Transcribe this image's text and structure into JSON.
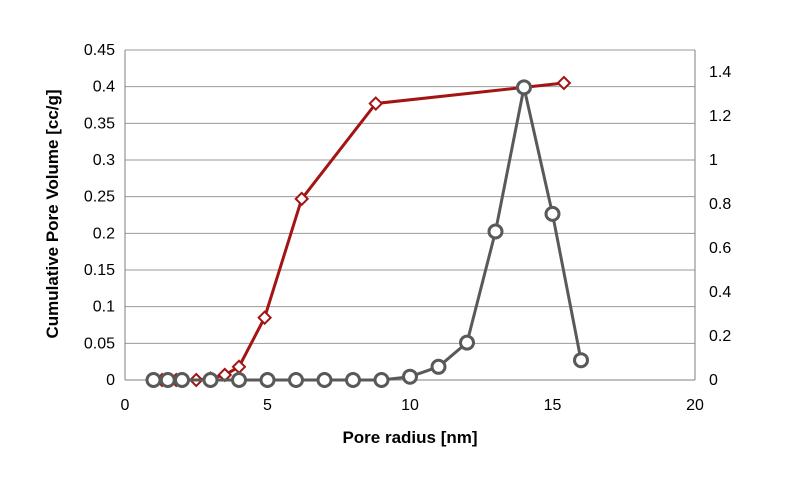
{
  "chart_data": {
    "type": "line",
    "xlabel": "Pore radius [nm]",
    "ylabel": "Cumulative Pore Volume [cc/g]",
    "y2label": "",
    "xlim": [
      0,
      20
    ],
    "ylim": [
      0,
      0.45
    ],
    "y2lim": [
      0,
      1.5
    ],
    "x_ticks": [
      "0",
      "5",
      "10",
      "15",
      "20"
    ],
    "y_ticks": [
      "0",
      "0.05",
      "0.1",
      "0.15",
      "0.2",
      "0.25",
      "0.3",
      "0.35",
      "0.4",
      "0.45"
    ],
    "y2_ticks": [
      "0",
      "0.2",
      "0.4",
      "0.6",
      "0.8",
      "1",
      "1.2",
      "1.4"
    ],
    "grid": true,
    "series": [
      {
        "axis": "left",
        "color": "#a31515",
        "marker": "diamond",
        "points": [
          {
            "x": 1.0,
            "y": 0
          },
          {
            "x": 1.3,
            "y": 0
          },
          {
            "x": 1.5,
            "y": 0
          },
          {
            "x": 1.6,
            "y": 0
          },
          {
            "x": 1.8,
            "y": 0
          },
          {
            "x": 2.0,
            "y": 0
          },
          {
            "x": 2.5,
            "y": 0
          },
          {
            "x": 3.0,
            "y": 0.002
          },
          {
            "x": 3.5,
            "y": 0.007
          },
          {
            "x": 4.0,
            "y": 0.018
          },
          {
            "x": 4.9,
            "y": 0.085
          },
          {
            "x": 6.2,
            "y": 0.247
          },
          {
            "x": 8.8,
            "y": 0.377
          },
          {
            "x": 15.4,
            "y": 0.405
          }
        ]
      },
      {
        "axis": "right",
        "color": "#595959",
        "marker": "circle",
        "points": [
          {
            "x": 1.0,
            "y": 0
          },
          {
            "x": 1.5,
            "y": 0
          },
          {
            "x": 2.0,
            "y": 0
          },
          {
            "x": 3.0,
            "y": 0
          },
          {
            "x": 4.0,
            "y": 0
          },
          {
            "x": 5.0,
            "y": 0
          },
          {
            "x": 6.0,
            "y": 0
          },
          {
            "x": 7.0,
            "y": 0
          },
          {
            "x": 8.0,
            "y": 0
          },
          {
            "x": 9.0,
            "y": 0
          },
          {
            "x": 10.0,
            "y": 0.015
          },
          {
            "x": 11.0,
            "y": 0.06
          },
          {
            "x": 12.0,
            "y": 0.17
          },
          {
            "x": 13.0,
            "y": 0.675
          },
          {
            "x": 14.0,
            "y": 1.33
          },
          {
            "x": 15.0,
            "y": 0.755
          },
          {
            "x": 16.0,
            "y": 0.09
          }
        ]
      }
    ]
  }
}
